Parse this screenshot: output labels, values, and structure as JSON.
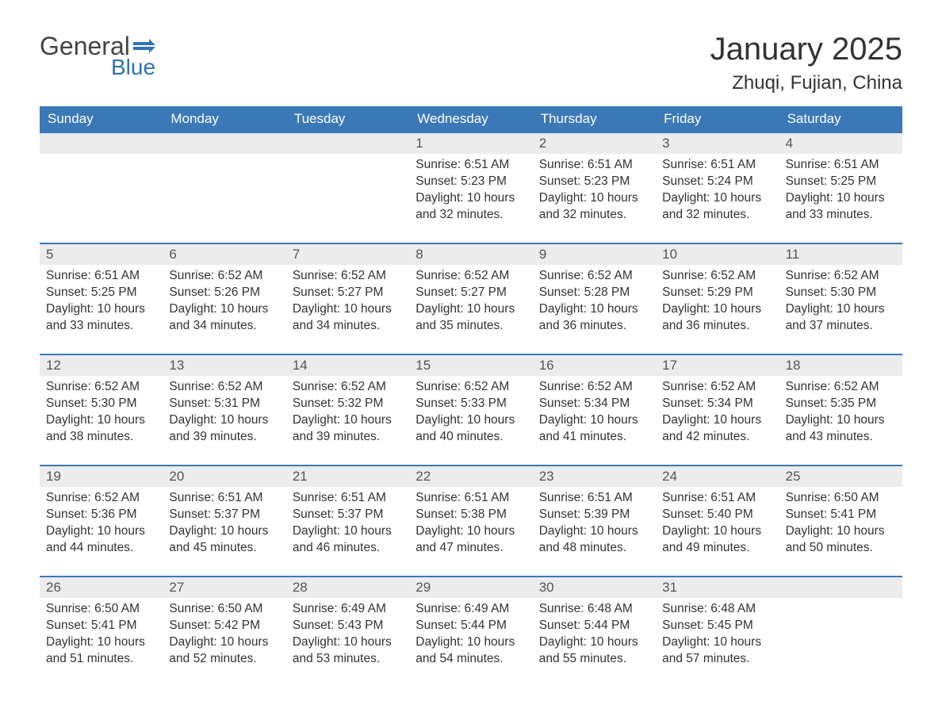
{
  "logo": {
    "general": "General",
    "blue": "Blue"
  },
  "title": "January 2025",
  "location": "Zhuqi, Fujian, China",
  "colors": {
    "header_bg": "#3b78b8",
    "header_text": "#ffffff",
    "daynum_bg": "#ececec",
    "week_border": "#3b78b8",
    "body_text": "#333333",
    "logo_blue": "#2f72b6",
    "logo_gray": "#444444",
    "background": "#ffffff"
  },
  "typography": {
    "title_fontsize": 40,
    "location_fontsize": 24,
    "dow_fontsize": 17,
    "daynum_fontsize": 17,
    "body_fontsize": 15.5,
    "logo_general_fontsize": 32,
    "logo_blue_fontsize": 28
  },
  "days_of_week": [
    "Sunday",
    "Monday",
    "Tuesday",
    "Wednesday",
    "Thursday",
    "Friday",
    "Saturday"
  ],
  "labels": {
    "sunrise": "Sunrise: ",
    "sunset": "Sunset: ",
    "daylight": "Daylight: "
  },
  "weeks": [
    [
      null,
      null,
      null,
      {
        "n": "1",
        "sunrise": "6:51 AM",
        "sunset": "5:23 PM",
        "daylight": "10 hours and 32 minutes."
      },
      {
        "n": "2",
        "sunrise": "6:51 AM",
        "sunset": "5:23 PM",
        "daylight": "10 hours and 32 minutes."
      },
      {
        "n": "3",
        "sunrise": "6:51 AM",
        "sunset": "5:24 PM",
        "daylight": "10 hours and 32 minutes."
      },
      {
        "n": "4",
        "sunrise": "6:51 AM",
        "sunset": "5:25 PM",
        "daylight": "10 hours and 33 minutes."
      }
    ],
    [
      {
        "n": "5",
        "sunrise": "6:51 AM",
        "sunset": "5:25 PM",
        "daylight": "10 hours and 33 minutes."
      },
      {
        "n": "6",
        "sunrise": "6:52 AM",
        "sunset": "5:26 PM",
        "daylight": "10 hours and 34 minutes."
      },
      {
        "n": "7",
        "sunrise": "6:52 AM",
        "sunset": "5:27 PM",
        "daylight": "10 hours and 34 minutes."
      },
      {
        "n": "8",
        "sunrise": "6:52 AM",
        "sunset": "5:27 PM",
        "daylight": "10 hours and 35 minutes."
      },
      {
        "n": "9",
        "sunrise": "6:52 AM",
        "sunset": "5:28 PM",
        "daylight": "10 hours and 36 minutes."
      },
      {
        "n": "10",
        "sunrise": "6:52 AM",
        "sunset": "5:29 PM",
        "daylight": "10 hours and 36 minutes."
      },
      {
        "n": "11",
        "sunrise": "6:52 AM",
        "sunset": "5:30 PM",
        "daylight": "10 hours and 37 minutes."
      }
    ],
    [
      {
        "n": "12",
        "sunrise": "6:52 AM",
        "sunset": "5:30 PM",
        "daylight": "10 hours and 38 minutes."
      },
      {
        "n": "13",
        "sunrise": "6:52 AM",
        "sunset": "5:31 PM",
        "daylight": "10 hours and 39 minutes."
      },
      {
        "n": "14",
        "sunrise": "6:52 AM",
        "sunset": "5:32 PM",
        "daylight": "10 hours and 39 minutes."
      },
      {
        "n": "15",
        "sunrise": "6:52 AM",
        "sunset": "5:33 PM",
        "daylight": "10 hours and 40 minutes."
      },
      {
        "n": "16",
        "sunrise": "6:52 AM",
        "sunset": "5:34 PM",
        "daylight": "10 hours and 41 minutes."
      },
      {
        "n": "17",
        "sunrise": "6:52 AM",
        "sunset": "5:34 PM",
        "daylight": "10 hours and 42 minutes."
      },
      {
        "n": "18",
        "sunrise": "6:52 AM",
        "sunset": "5:35 PM",
        "daylight": "10 hours and 43 minutes."
      }
    ],
    [
      {
        "n": "19",
        "sunrise": "6:52 AM",
        "sunset": "5:36 PM",
        "daylight": "10 hours and 44 minutes."
      },
      {
        "n": "20",
        "sunrise": "6:51 AM",
        "sunset": "5:37 PM",
        "daylight": "10 hours and 45 minutes."
      },
      {
        "n": "21",
        "sunrise": "6:51 AM",
        "sunset": "5:37 PM",
        "daylight": "10 hours and 46 minutes."
      },
      {
        "n": "22",
        "sunrise": "6:51 AM",
        "sunset": "5:38 PM",
        "daylight": "10 hours and 47 minutes."
      },
      {
        "n": "23",
        "sunrise": "6:51 AM",
        "sunset": "5:39 PM",
        "daylight": "10 hours and 48 minutes."
      },
      {
        "n": "24",
        "sunrise": "6:51 AM",
        "sunset": "5:40 PM",
        "daylight": "10 hours and 49 minutes."
      },
      {
        "n": "25",
        "sunrise": "6:50 AM",
        "sunset": "5:41 PM",
        "daylight": "10 hours and 50 minutes."
      }
    ],
    [
      {
        "n": "26",
        "sunrise": "6:50 AM",
        "sunset": "5:41 PM",
        "daylight": "10 hours and 51 minutes."
      },
      {
        "n": "27",
        "sunrise": "6:50 AM",
        "sunset": "5:42 PM",
        "daylight": "10 hours and 52 minutes."
      },
      {
        "n": "28",
        "sunrise": "6:49 AM",
        "sunset": "5:43 PM",
        "daylight": "10 hours and 53 minutes."
      },
      {
        "n": "29",
        "sunrise": "6:49 AM",
        "sunset": "5:44 PM",
        "daylight": "10 hours and 54 minutes."
      },
      {
        "n": "30",
        "sunrise": "6:48 AM",
        "sunset": "5:44 PM",
        "daylight": "10 hours and 55 minutes."
      },
      {
        "n": "31",
        "sunrise": "6:48 AM",
        "sunset": "5:45 PM",
        "daylight": "10 hours and 57 minutes."
      },
      null
    ]
  ]
}
